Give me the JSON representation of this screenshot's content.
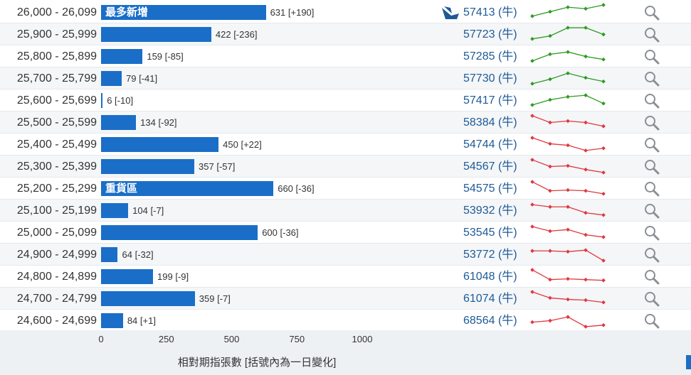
{
  "chart_data": {
    "type": "bar",
    "orientation": "horizontal",
    "xlabel": "相對期指張數 [括號內為一日變化]",
    "xlim": [
      0,
      1000
    ],
    "xticks": [
      "0",
      "250",
      "500",
      "750",
      "1000"
    ],
    "categories": [
      "26,000 - 26,099",
      "25,900 - 25,999",
      "25,800 - 25,899",
      "25,700 - 25,799",
      "25,600 - 25,699",
      "25,500 - 25,599",
      "25,400 - 25,499",
      "25,300 - 25,399",
      "25,200 - 25,299",
      "25,100 - 25,199",
      "25,000 - 25,099",
      "24,900 - 24,999",
      "24,800 - 24,899",
      "24,700 - 24,799",
      "24,600 - 24,699"
    ],
    "values": [
      631,
      422,
      159,
      79,
      6,
      134,
      450,
      357,
      660,
      104,
      600,
      64,
      199,
      359,
      84
    ],
    "changes": [
      "[+190]",
      "[-236]",
      "[-85]",
      "[-41]",
      "[-10]",
      "[-92]",
      "[+22]",
      "[-57]",
      "[-36]",
      "[-7]",
      "[-36]",
      "[-32]",
      "[-9]",
      "[-7]",
      "[+1]"
    ],
    "bar_tags": {
      "0": "最多新增",
      "8": "重貨區"
    },
    "bar_color": "#1a6ec8"
  },
  "rows": [
    {
      "code": "57413 (牛)",
      "trend": "up",
      "spark": [
        0.25,
        0.55,
        0.85,
        0.75,
        1.0
      ],
      "ship_icon": "ship-icon"
    },
    {
      "code": "57723 (牛)",
      "trend": "up",
      "spark": [
        0.2,
        0.4,
        0.95,
        0.95,
        0.5
      ]
    },
    {
      "code": "57285 (牛)",
      "trend": "up",
      "spark": [
        0.2,
        0.65,
        0.8,
        0.5,
        0.3
      ]
    },
    {
      "code": "57730 (牛)",
      "trend": "up",
      "spark": [
        0.15,
        0.45,
        0.85,
        0.55,
        0.3
      ]
    },
    {
      "code": "57417 (牛)",
      "trend": "up",
      "spark": [
        0.2,
        0.55,
        0.75,
        0.85,
        0.3
      ]
    },
    {
      "code": "58384 (牛)",
      "trend": "down",
      "spark": [
        0.95,
        0.5,
        0.6,
        0.5,
        0.25
      ]
    },
    {
      "code": "54744 (牛)",
      "trend": "down",
      "spark": [
        0.95,
        0.55,
        0.45,
        0.1,
        0.25
      ]
    },
    {
      "code": "54567 (牛)",
      "trend": "down",
      "spark": [
        0.95,
        0.5,
        0.55,
        0.3,
        0.1
      ]
    },
    {
      "code": "54575 (牛)",
      "trend": "down",
      "spark": [
        0.95,
        0.35,
        0.4,
        0.35,
        0.15
      ]
    },
    {
      "code": "53932 (牛)",
      "trend": "down",
      "spark": [
        0.9,
        0.75,
        0.75,
        0.35,
        0.2
      ]
    },
    {
      "code": "53545 (牛)",
      "trend": "down",
      "spark": [
        0.9,
        0.6,
        0.7,
        0.35,
        0.2
      ]
    },
    {
      "code": "53772 (牛)",
      "trend": "down",
      "spark": [
        0.75,
        0.75,
        0.7,
        0.8,
        0.1
      ]
    },
    {
      "code": "61048 (牛)",
      "trend": "down",
      "spark": [
        0.95,
        0.3,
        0.35,
        0.3,
        0.25
      ]
    },
    {
      "code": "61074 (牛)",
      "trend": "down",
      "spark": [
        0.95,
        0.55,
        0.45,
        0.4,
        0.25
      ]
    },
    {
      "code": "68564 (牛)",
      "trend": "down",
      "spark": [
        0.4,
        0.5,
        0.75,
        0.1,
        0.2
      ]
    }
  ],
  "colors": {
    "up": "#2e9b22",
    "down": "#e0383f",
    "code_link": "#1e5a96",
    "row_alt_bg": "#f4f6f8",
    "axis_bg": "#eef1f4"
  },
  "icons": {
    "search": "magnifier-icon",
    "ship": "ship-icon"
  }
}
